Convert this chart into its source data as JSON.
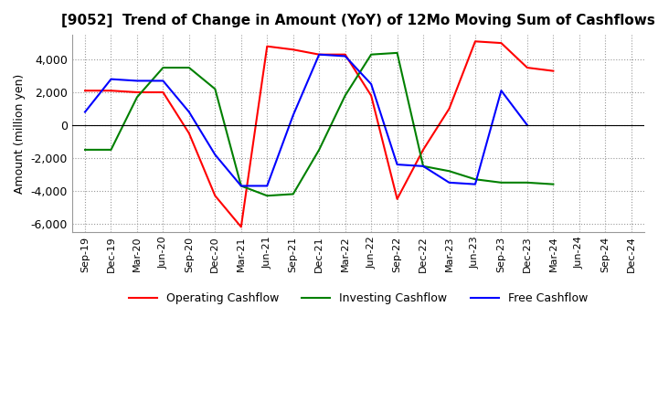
{
  "title": "[9052]  Trend of Change in Amount (YoY) of 12Mo Moving Sum of Cashflows",
  "ylabel": "Amount (million yen)",
  "x_labels": [
    "Sep-19",
    "Dec-19",
    "Mar-20",
    "Jun-20",
    "Sep-20",
    "Dec-20",
    "Mar-21",
    "Jun-21",
    "Sep-21",
    "Dec-21",
    "Mar-22",
    "Jun-22",
    "Sep-22",
    "Dec-22",
    "Mar-23",
    "Jun-23",
    "Sep-23",
    "Dec-23",
    "Mar-24",
    "Jun-24",
    "Sep-24",
    "Dec-24"
  ],
  "operating": [
    2100,
    2100,
    2000,
    2000,
    -500,
    -4300,
    -6200,
    4800,
    4600,
    4300,
    4300,
    1800,
    -4500,
    -1500,
    1000,
    5100,
    5000,
    3500,
    3300,
    null,
    null,
    null
  ],
  "investing": [
    -1500,
    -1500,
    1700,
    3500,
    3500,
    2200,
    -3700,
    -4300,
    -4200,
    -1500,
    1800,
    4300,
    4400,
    -2500,
    -2800,
    -3300,
    -3500,
    -3500,
    -3600,
    null,
    null,
    null
  ],
  "free": [
    800,
    2800,
    2700,
    2700,
    800,
    -1800,
    -3700,
    -3700,
    600,
    4300,
    4200,
    2500,
    -2400,
    -2500,
    -3500,
    -3600,
    2100,
    0,
    null,
    null,
    null,
    null
  ],
  "ylim": [
    -6500,
    5500
  ],
  "yticks": [
    -6000,
    -4000,
    -2000,
    0,
    2000,
    4000
  ],
  "colors": {
    "operating": "#ff0000",
    "investing": "#008000",
    "free": "#0000ff"
  },
  "legend": [
    "Operating Cashflow",
    "Investing Cashflow",
    "Free Cashflow"
  ],
  "grid_color": "#aaaaaa",
  "grid_style": "dotted"
}
